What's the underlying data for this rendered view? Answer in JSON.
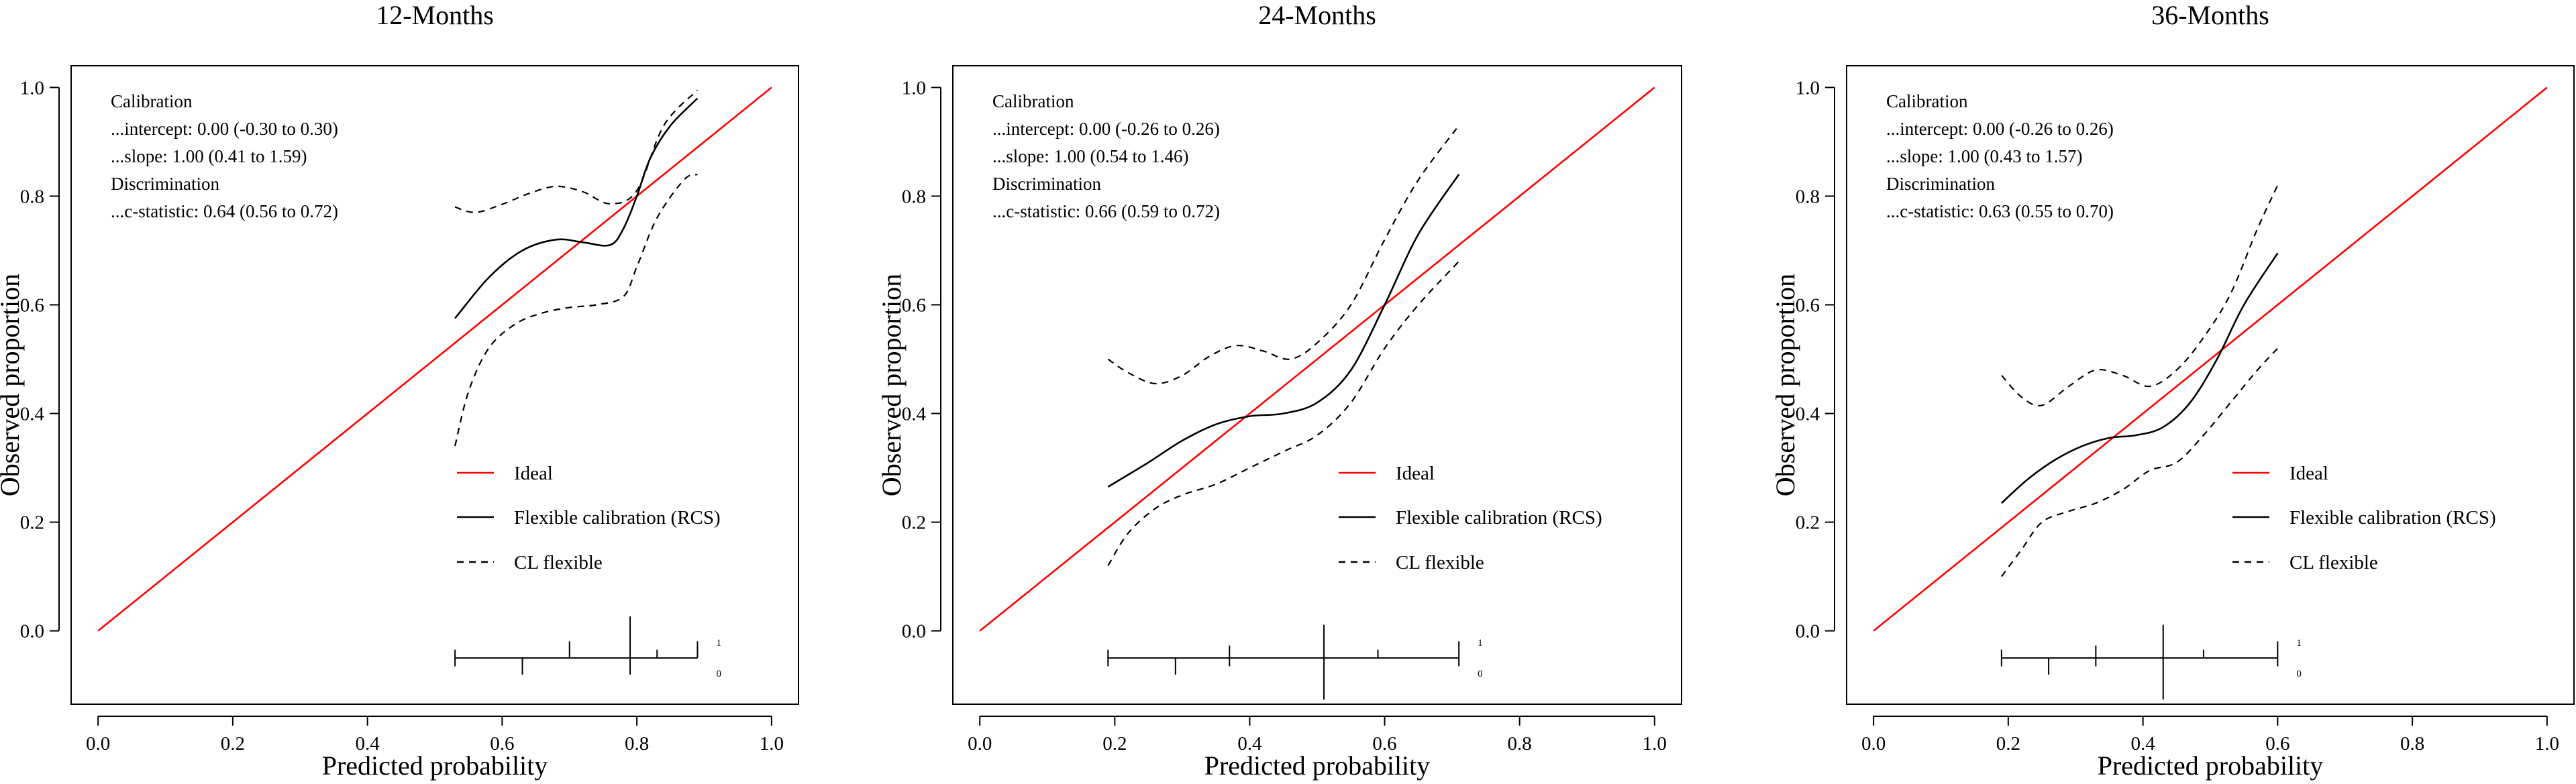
{
  "colors": {
    "ideal": "#ff0000",
    "flexible": "#000000",
    "ci": "#000000",
    "axis": "#000000"
  },
  "chart_data": [
    {
      "type": "line",
      "title": "12-Months",
      "xlabel": "Predicted probability",
      "ylabel": "Observed proportion",
      "xlim": [
        0,
        1
      ],
      "ylim": [
        0,
        1
      ],
      "xticks": [
        "0.0",
        "0.2",
        "0.4",
        "0.6",
        "0.8",
        "1.0"
      ],
      "yticks": [
        "0.0",
        "0.2",
        "0.4",
        "0.6",
        "0.8",
        "1.0"
      ],
      "stats": [
        "Calibration",
        "...intercept: 0.00 (-0.30 to 0.30)",
        "...slope: 1.00 (0.41 to 1.59)",
        "Discrimination",
        "...c-statistic: 0.64 (0.56 to 0.72)"
      ],
      "legend": [
        "Ideal",
        "Flexible calibration (RCS)",
        "CL flexible"
      ],
      "spike_labels": [
        "1",
        "0"
      ],
      "series": [
        {
          "name": "Ideal",
          "x": [
            0,
            1
          ],
          "y": [
            0,
            1
          ]
        },
        {
          "name": "Flexible calibration (RCS)",
          "x": [
            0.53,
            0.58,
            0.63,
            0.68,
            0.72,
            0.76,
            0.78,
            0.8,
            0.82,
            0.85,
            0.89
          ],
          "y": [
            0.575,
            0.65,
            0.7,
            0.72,
            0.715,
            0.71,
            0.74,
            0.8,
            0.87,
            0.93,
            0.98
          ]
        },
        {
          "name": "CL flexible upper",
          "x": [
            0.53,
            0.56,
            0.6,
            0.64,
            0.68,
            0.72,
            0.76,
            0.8,
            0.84,
            0.89
          ],
          "y": [
            0.78,
            0.77,
            0.785,
            0.805,
            0.818,
            0.808,
            0.786,
            0.81,
            0.93,
            0.995
          ]
        },
        {
          "name": "CL flexible lower",
          "x": [
            0.53,
            0.55,
            0.58,
            0.62,
            0.66,
            0.7,
            0.74,
            0.78,
            0.8,
            0.83,
            0.87,
            0.89
          ],
          "y": [
            0.34,
            0.44,
            0.52,
            0.565,
            0.585,
            0.595,
            0.6,
            0.615,
            0.67,
            0.76,
            0.83,
            0.84
          ]
        }
      ],
      "spikes": {
        "range": [
          0.53,
          0.89
        ],
        "up": [
          {
            "x": 0.53,
            "h": 0.02
          },
          {
            "x": 0.7,
            "h": 0.04
          },
          {
            "x": 0.79,
            "h": 0.1
          },
          {
            "x": 0.83,
            "h": 0.02
          },
          {
            "x": 0.89,
            "h": 0.04
          }
        ],
        "down": [
          {
            "x": 0.53,
            "h": 0.02
          },
          {
            "x": 0.63,
            "h": 0.04
          },
          {
            "x": 0.79,
            "h": 0.04
          }
        ]
      }
    },
    {
      "type": "line",
      "title": "24-Months",
      "xlabel": "Predicted probability",
      "ylabel": "Observed proportion",
      "xlim": [
        0,
        1
      ],
      "ylim": [
        0,
        1
      ],
      "xticks": [
        "0.0",
        "0.2",
        "0.4",
        "0.6",
        "0.8",
        "1.0"
      ],
      "yticks": [
        "0.0",
        "0.2",
        "0.4",
        "0.6",
        "0.8",
        "1.0"
      ],
      "stats": [
        "Calibration",
        "...intercept: 0.00 (-0.26 to 0.26)",
        "...slope: 1.00 (0.54 to 1.46)",
        "Discrimination",
        "...c-statistic: 0.66 (0.59 to 0.72)"
      ],
      "legend": [
        "Ideal",
        "Flexible calibration (RCS)",
        "CL flexible"
      ],
      "spike_labels": [
        "1",
        "0"
      ],
      "series": [
        {
          "name": "Ideal",
          "x": [
            0,
            1
          ],
          "y": [
            0,
            1
          ]
        },
        {
          "name": "Flexible calibration (RCS)",
          "x": [
            0.19,
            0.25,
            0.3,
            0.35,
            0.4,
            0.45,
            0.5,
            0.55,
            0.6,
            0.65,
            0.71
          ],
          "y": [
            0.265,
            0.31,
            0.35,
            0.38,
            0.395,
            0.4,
            0.42,
            0.48,
            0.6,
            0.73,
            0.84
          ]
        },
        {
          "name": "CL flexible upper",
          "x": [
            0.19,
            0.22,
            0.26,
            0.3,
            0.34,
            0.38,
            0.42,
            0.46,
            0.5,
            0.55,
            0.6,
            0.65,
            0.71
          ],
          "y": [
            0.5,
            0.475,
            0.455,
            0.47,
            0.505,
            0.525,
            0.515,
            0.5,
            0.53,
            0.6,
            0.72,
            0.83,
            0.93
          ]
        },
        {
          "name": "CL flexible lower",
          "x": [
            0.19,
            0.22,
            0.26,
            0.3,
            0.35,
            0.4,
            0.45,
            0.5,
            0.55,
            0.6,
            0.65,
            0.71
          ],
          "y": [
            0.12,
            0.18,
            0.225,
            0.25,
            0.27,
            0.3,
            0.33,
            0.36,
            0.42,
            0.52,
            0.6,
            0.68
          ]
        }
      ],
      "spikes": {
        "range": [
          0.19,
          0.71
        ],
        "up": [
          {
            "x": 0.19,
            "h": 0.02
          },
          {
            "x": 0.37,
            "h": 0.03
          },
          {
            "x": 0.51,
            "h": 0.08
          },
          {
            "x": 0.59,
            "h": 0.02
          },
          {
            "x": 0.71,
            "h": 0.04
          }
        ],
        "down": [
          {
            "x": 0.19,
            "h": 0.02
          },
          {
            "x": 0.29,
            "h": 0.04
          },
          {
            "x": 0.37,
            "h": 0.02
          },
          {
            "x": 0.51,
            "h": 0.1
          },
          {
            "x": 0.71,
            "h": 0.02
          }
        ]
      }
    },
    {
      "type": "line",
      "title": "36-Months",
      "xlabel": "Predicted probability",
      "ylabel": "Observed proportion",
      "xlim": [
        0,
        1
      ],
      "ylim": [
        0,
        1
      ],
      "xticks": [
        "0.0",
        "0.2",
        "0.4",
        "0.6",
        "0.8",
        "1.0"
      ],
      "yticks": [
        "0.0",
        "0.2",
        "0.4",
        "0.6",
        "0.8",
        "1.0"
      ],
      "stats": [
        "Calibration",
        "...intercept: 0.00 (-0.26 to 0.26)",
        "...slope: 1.00 (0.43 to 1.57)",
        "Discrimination",
        "...c-statistic: 0.63 (0.55 to 0.70)"
      ],
      "legend": [
        "Ideal",
        "Flexible calibration (RCS)",
        "CL flexible"
      ],
      "spike_labels": [
        "1",
        "0"
      ],
      "series": [
        {
          "name": "Ideal",
          "x": [
            0,
            1
          ],
          "y": [
            0,
            1
          ]
        },
        {
          "name": "Flexible calibration (RCS)",
          "x": [
            0.19,
            0.23,
            0.27,
            0.31,
            0.35,
            0.39,
            0.43,
            0.47,
            0.51,
            0.55,
            0.6
          ],
          "y": [
            0.235,
            0.28,
            0.315,
            0.34,
            0.355,
            0.36,
            0.375,
            0.42,
            0.5,
            0.6,
            0.695
          ]
        },
        {
          "name": "CL flexible upper",
          "x": [
            0.19,
            0.22,
            0.25,
            0.29,
            0.33,
            0.37,
            0.41,
            0.45,
            0.49,
            0.53,
            0.57,
            0.6
          ],
          "y": [
            0.47,
            0.43,
            0.415,
            0.45,
            0.48,
            0.47,
            0.45,
            0.48,
            0.54,
            0.62,
            0.74,
            0.82
          ]
        },
        {
          "name": "CL flexible lower",
          "x": [
            0.19,
            0.22,
            0.25,
            0.29,
            0.33,
            0.37,
            0.41,
            0.45,
            0.49,
            0.53,
            0.57,
            0.6
          ],
          "y": [
            0.1,
            0.15,
            0.2,
            0.22,
            0.235,
            0.26,
            0.295,
            0.31,
            0.36,
            0.42,
            0.48,
            0.52
          ]
        }
      ],
      "spikes": {
        "range": [
          0.19,
          0.6
        ],
        "up": [
          {
            "x": 0.19,
            "h": 0.02
          },
          {
            "x": 0.33,
            "h": 0.03
          },
          {
            "x": 0.43,
            "h": 0.08
          },
          {
            "x": 0.49,
            "h": 0.02
          },
          {
            "x": 0.6,
            "h": 0.04
          }
        ],
        "down": [
          {
            "x": 0.19,
            "h": 0.02
          },
          {
            "x": 0.26,
            "h": 0.04
          },
          {
            "x": 0.33,
            "h": 0.02
          },
          {
            "x": 0.43,
            "h": 0.1
          },
          {
            "x": 0.6,
            "h": 0.02
          }
        ]
      }
    }
  ]
}
